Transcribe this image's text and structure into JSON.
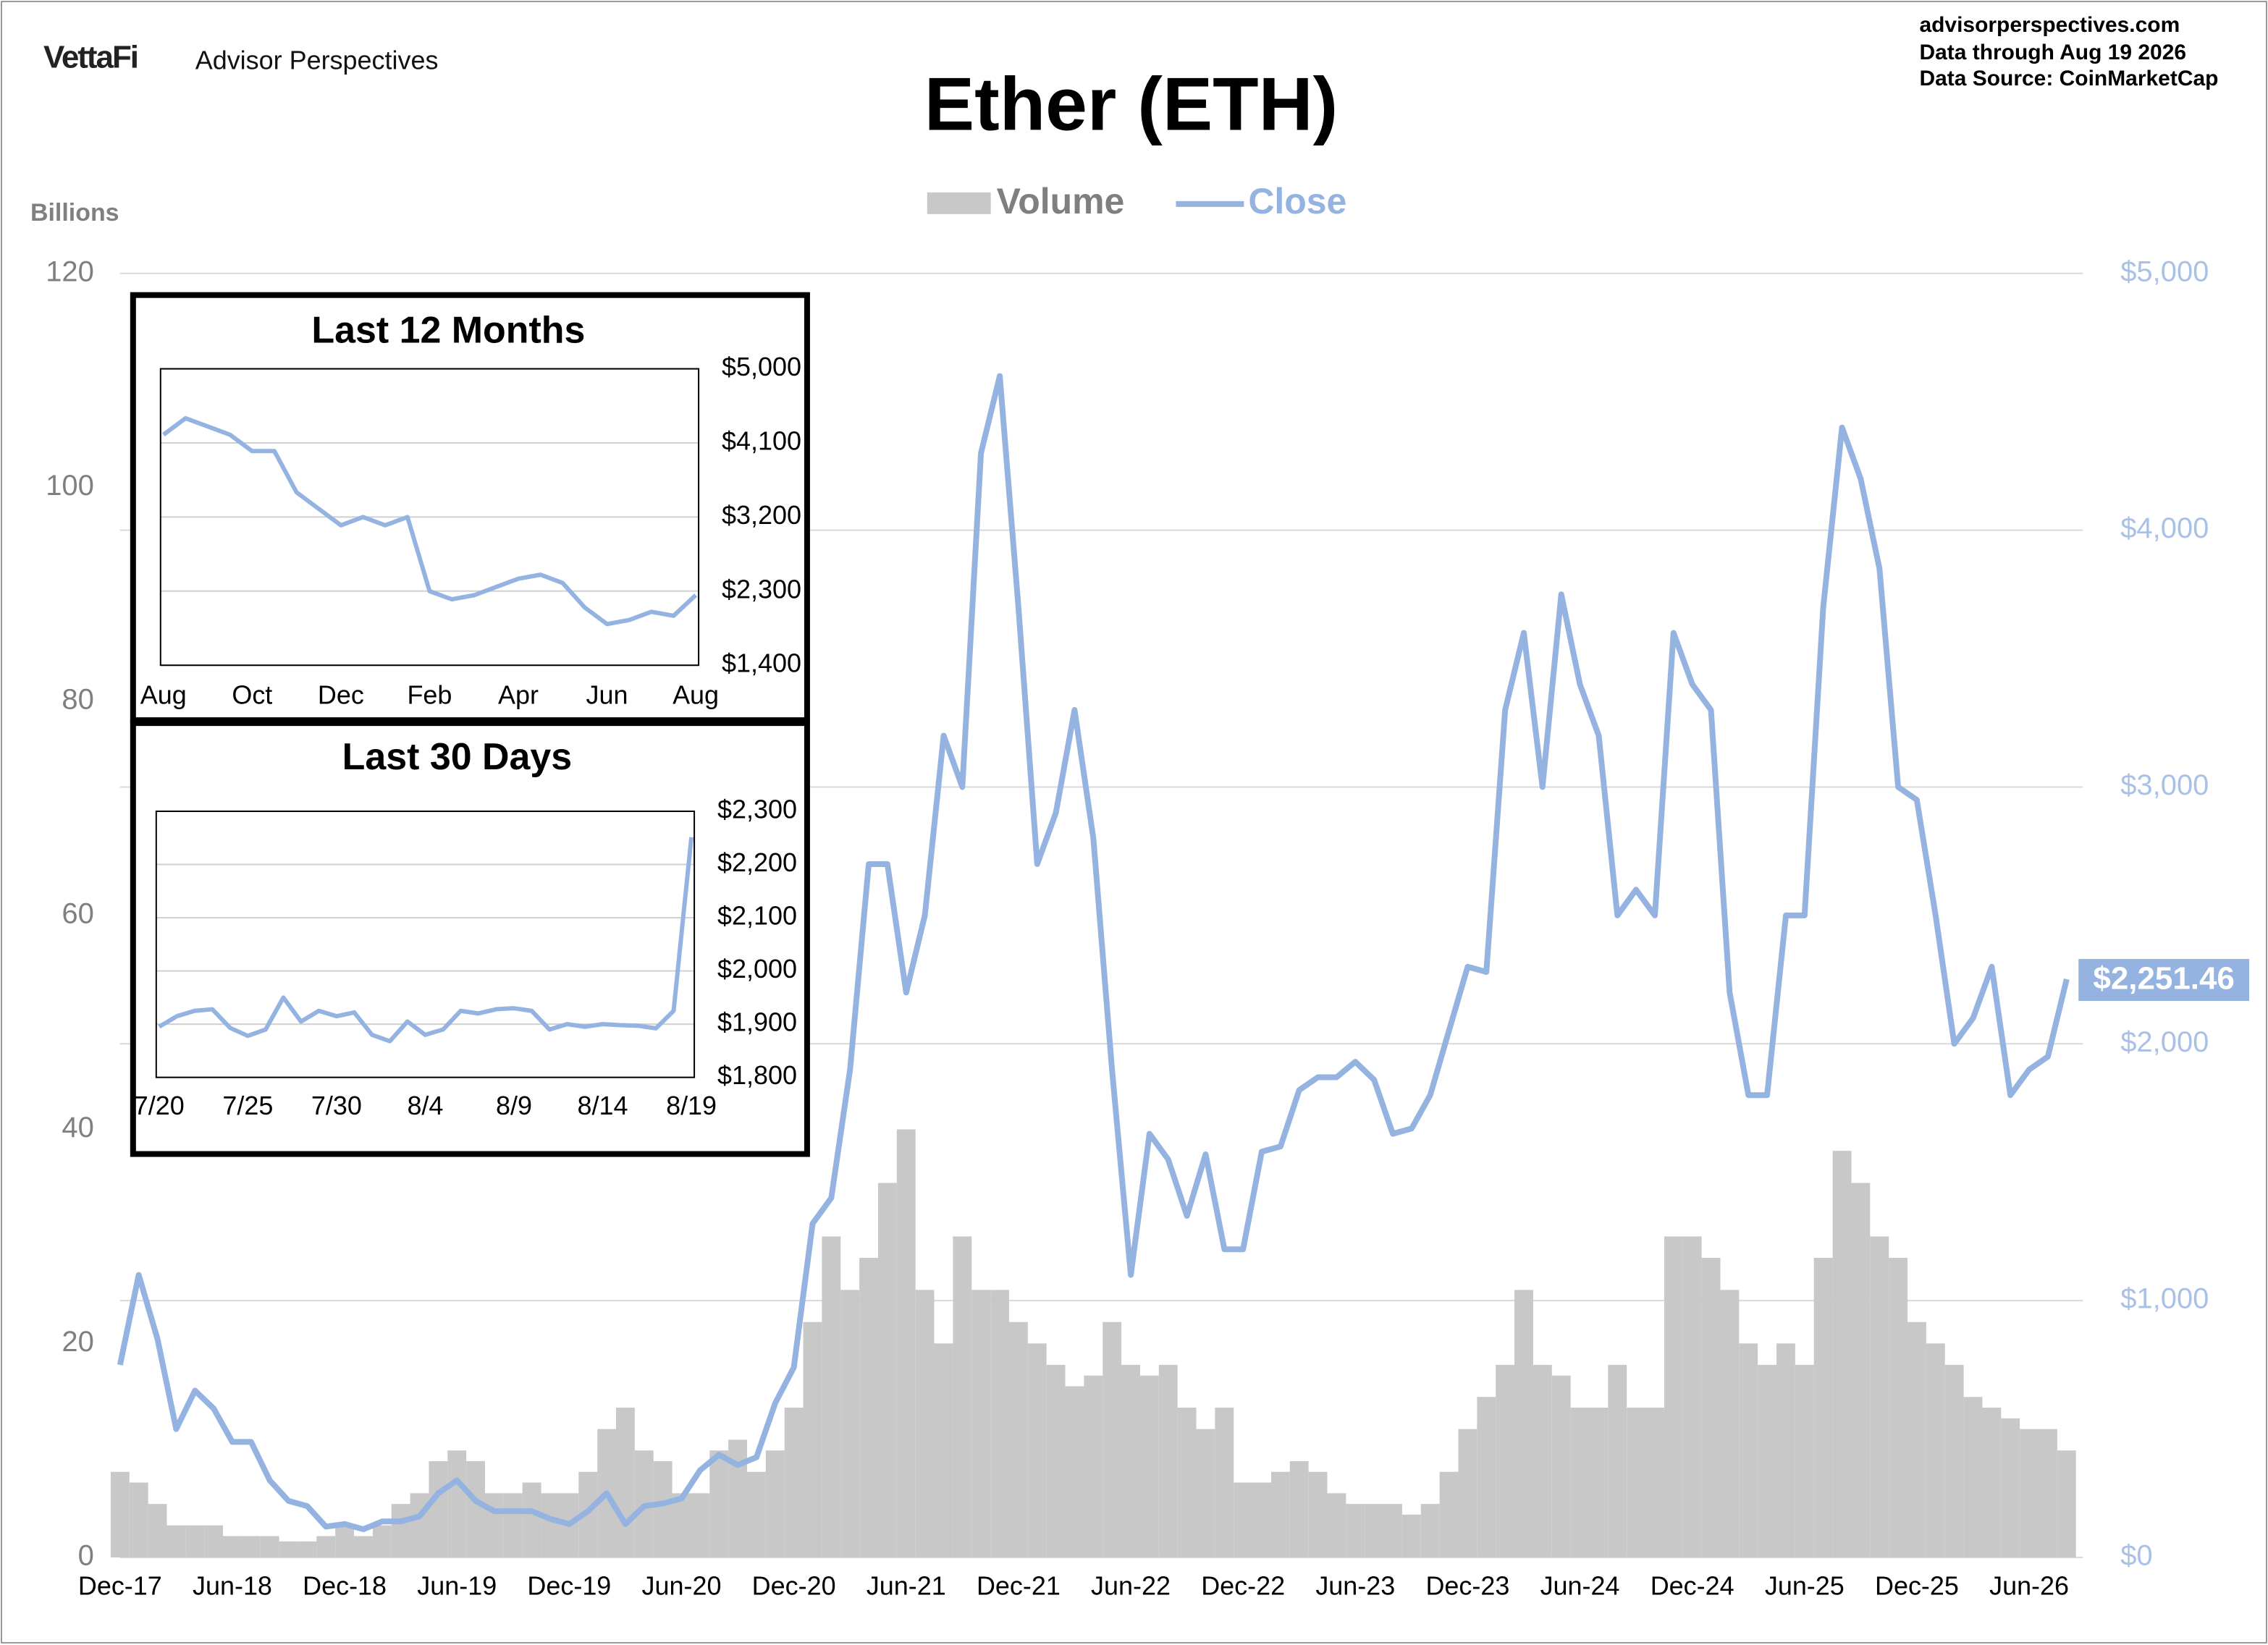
{
  "header": {
    "brand": "VettaFi",
    "brand_subtitle": "Advisor Perspectives",
    "site": "advisorperspectives.com",
    "data_through": "Data through  Aug 19 2026",
    "data_source": "Data Source:  CoinMarketCap"
  },
  "chart_data": [
    {
      "type": "bar-line",
      "title": "Ether (ETH)",
      "y_axis_label": "Billions",
      "categories": [
        "Dec-17",
        null,
        null,
        null,
        null,
        null,
        "Jun-18",
        null,
        null,
        null,
        null,
        null,
        "Dec-18",
        null,
        null,
        null,
        null,
        null,
        "Jun-19",
        null,
        null,
        null,
        null,
        null,
        "Dec-19",
        null,
        null,
        null,
        null,
        null,
        "Jun-20",
        null,
        null,
        null,
        null,
        null,
        "Dec-20",
        null,
        null,
        null,
        null,
        null,
        "Jun-21",
        null,
        null,
        null,
        null,
        null,
        "Dec-21",
        null,
        null,
        null,
        null,
        null,
        "Jun-22",
        null,
        null,
        null,
        null,
        null,
        "Dec-22",
        null,
        null,
        null,
        null,
        null,
        "Jun-23",
        null,
        null,
        null,
        null,
        null,
        "Dec-23",
        null,
        null,
        null,
        null,
        null,
        "Jun-24",
        null,
        null,
        null,
        null,
        null,
        "Dec-24",
        null,
        null,
        null,
        null,
        null,
        "Jun-25",
        null,
        null,
        null,
        null,
        null,
        "Dec-25",
        null,
        null,
        null,
        null,
        null,
        "Jun-26",
        null,
        null
      ],
      "series": [
        {
          "name": "Volume",
          "color": "#c8c8c8",
          "axis": "y",
          "values": [
            8,
            7,
            5,
            3,
            3,
            3,
            2,
            2,
            2,
            1.5,
            1.5,
            2,
            3,
            2,
            3,
            5,
            6,
            9,
            10,
            9,
            6,
            6,
            7,
            6,
            6,
            8,
            12,
            14,
            10,
            9,
            6,
            6,
            10,
            11,
            8,
            10,
            14,
            22,
            30,
            25,
            28,
            35,
            40,
            25,
            20,
            30,
            25,
            25,
            22,
            20,
            18,
            16,
            17,
            22,
            18,
            17,
            18,
            14,
            12,
            14,
            7,
            7,
            8,
            9,
            8,
            6,
            5,
            5,
            5,
            4,
            5,
            8,
            12,
            15,
            18,
            25,
            18,
            17,
            14,
            14,
            18,
            14,
            14,
            30,
            30,
            28,
            25,
            20,
            18,
            20,
            18,
            28,
            38,
            35,
            30,
            28,
            22,
            20,
            18,
            15,
            14,
            13,
            12,
            12,
            10
          ]
        },
        {
          "name": "Close",
          "color": "#95b3e0",
          "axis": "y2",
          "values": [
            750,
            1100,
            850,
            500,
            650,
            580,
            450,
            450,
            300,
            220,
            200,
            120,
            130,
            110,
            140,
            140,
            160,
            250,
            300,
            220,
            180,
            180,
            180,
            150,
            130,
            180,
            250,
            130,
            200,
            210,
            230,
            340,
            400,
            360,
            390,
            600,
            740,
            1300,
            1400,
            1900,
            2700,
            2700,
            2200,
            2500,
            3200,
            3000,
            4300,
            4600,
            3700,
            2700,
            2900,
            3300,
            2800,
            1900,
            1100,
            1650,
            1550,
            1330,
            1570,
            1200,
            1200,
            1580,
            1600,
            1820,
            1870,
            1870,
            1930,
            1860,
            1650,
            1670,
            1800,
            2050,
            2300,
            2280,
            3300,
            3600,
            3000,
            3750,
            3400,
            3200,
            2500,
            2600,
            2500,
            3600,
            3400,
            3300,
            2200,
            1800,
            1800,
            2500,
            2500,
            3700,
            4400,
            4200,
            3850,
            3000,
            2950,
            2500,
            2000,
            2100,
            2300,
            1800,
            1900,
            1950,
            2251.46
          ],
          "value_labels": [
            null,
            null,
            null,
            null,
            null,
            null,
            null,
            null,
            null,
            null,
            null,
            null,
            null,
            null,
            null,
            null,
            null,
            null,
            null,
            null,
            null,
            null,
            null,
            null,
            null,
            null,
            null,
            null,
            null,
            null,
            null,
            null,
            null,
            null,
            null,
            null,
            null,
            null,
            null,
            null,
            null,
            null,
            null,
            null,
            null,
            null,
            null,
            null,
            null,
            null,
            null,
            null,
            null,
            null,
            null,
            null,
            null,
            null,
            null,
            null,
            null,
            null,
            null,
            null,
            null,
            null,
            null,
            null,
            null,
            null,
            null,
            null,
            null,
            null,
            null,
            null,
            null,
            null,
            null,
            null,
            null,
            null,
            null,
            null,
            null,
            null,
            null,
            null,
            null,
            null,
            null,
            null,
            null,
            null,
            null,
            null,
            null,
            null,
            null,
            null,
            null,
            null,
            null,
            null,
            "$2,251.46"
          ]
        }
      ],
      "ylim": [
        0,
        120
      ],
      "yticks": [
        0,
        20,
        40,
        60,
        80,
        100,
        120
      ],
      "y2lim": [
        0,
        5000
      ],
      "y2ticks": [
        {
          "value": 0,
          "label": "$0"
        },
        {
          "value": 1000,
          "label": "$1,000"
        },
        {
          "value": 2000,
          "label": "$2,000"
        },
        {
          "value": 3000,
          "label": "$3,000"
        },
        {
          "value": 4000,
          "label": "$4,000"
        },
        {
          "value": 5000,
          "label": "$5,000"
        }
      ],
      "grid": true,
      "legend": "top"
    },
    {
      "type": "line",
      "title": "Last 12 Months",
      "color": "#95b3e0",
      "categories": [
        "Aug",
        null,
        null,
        null,
        "Oct",
        null,
        null,
        null,
        "Dec",
        null,
        null,
        null,
        "Feb",
        null,
        null,
        null,
        "Apr",
        null,
        null,
        null,
        "Jun",
        null,
        null,
        null,
        "Aug"
      ],
      "values": [
        4200,
        4400,
        4300,
        4200,
        4000,
        4000,
        3500,
        3300,
        3100,
        3200,
        3100,
        3200,
        2300,
        2200,
        2250,
        2350,
        2450,
        2500,
        2400,
        2100,
        1900,
        1950,
        2050,
        2000,
        2251.46
      ],
      "ylim": [
        1400,
        5000
      ],
      "yticks": [
        {
          "value": 1400,
          "label": "$1,400"
        },
        {
          "value": 2300,
          "label": "$2,300"
        },
        {
          "value": 3200,
          "label": "$3,200"
        },
        {
          "value": 4100,
          "label": "$4,100"
        },
        {
          "value": 5000,
          "label": "$5,000"
        }
      ],
      "grid": true
    },
    {
      "type": "line",
      "title": "Last 30 Days",
      "color": "#95b3e0",
      "categories": [
        "7/20",
        null,
        null,
        null,
        null,
        "7/25",
        null,
        null,
        null,
        null,
        "7/30",
        null,
        null,
        null,
        null,
        "8/4",
        null,
        null,
        null,
        null,
        "8/9",
        null,
        null,
        null,
        null,
        "8/14",
        null,
        null,
        null,
        null,
        "8/19"
      ],
      "values": [
        1895,
        1915,
        1925,
        1928,
        1893,
        1878,
        1890,
        1950,
        1905,
        1925,
        1915,
        1922,
        1880,
        1868,
        1905,
        1880,
        1890,
        1925,
        1920,
        1928,
        1930,
        1925,
        1890,
        1900,
        1895,
        1900,
        1898,
        1897,
        1892,
        1925,
        2251.46
      ],
      "ylim": [
        1800,
        2300
      ],
      "yticks": [
        {
          "value": 1800,
          "label": "$1,800"
        },
        {
          "value": 1900,
          "label": "$1,900"
        },
        {
          "value": 2000,
          "label": "$2,000"
        },
        {
          "value": 2100,
          "label": "$2,100"
        },
        {
          "value": 2200,
          "label": "$2,200"
        },
        {
          "value": 2300,
          "label": "$2,300"
        }
      ],
      "grid": true
    }
  ]
}
